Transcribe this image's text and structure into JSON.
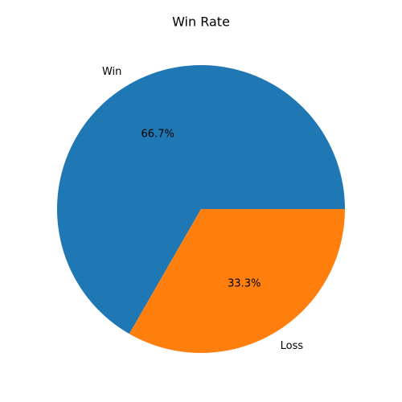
{
  "chart_data": {
    "type": "pie",
    "title": "Win Rate",
    "categories": [
      "Win",
      "Loss"
    ],
    "values": [
      66.7,
      33.3
    ],
    "value_labels": [
      "66.7%",
      "33.3%"
    ],
    "colors": [
      "#1f77b4",
      "#ff7f0e"
    ]
  }
}
